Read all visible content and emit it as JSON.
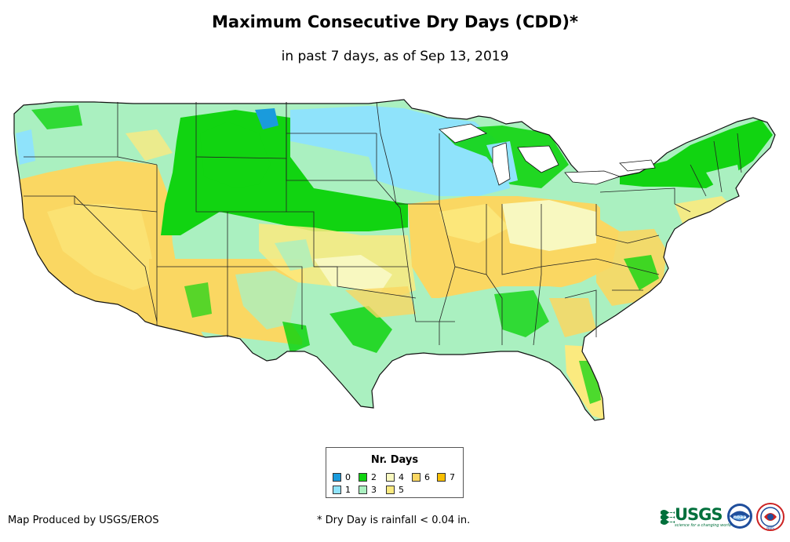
{
  "title": "Maximum Consecutive Dry Days (CDD)*",
  "subtitle": "in past 7 days, as of Sep 13, 2019",
  "legend": {
    "title": "Nr. Days",
    "items": [
      {
        "label": "0",
        "color": "#1a9bdc"
      },
      {
        "label": "1",
        "color": "#8fe3fb"
      },
      {
        "label": "2",
        "color": "#11d411"
      },
      {
        "label": "3",
        "color": "#aaf0c0"
      },
      {
        "label": "4",
        "color": "#f8f8c0"
      },
      {
        "label": "5",
        "color": "#fbea7f"
      },
      {
        "label": "6",
        "color": "#fad762"
      },
      {
        "label": "7",
        "color": "#f8bf00"
      }
    ]
  },
  "footer": {
    "credit": "Map Produced by USGS/EROS",
    "note": "* Dry Day is rainfall < 0.04 in."
  },
  "logos": {
    "usgs_text": "USGS",
    "usgs_tagline": "science for a changing world",
    "noaa_text": "noaa",
    "nws_text": "NWS"
  },
  "map": {
    "region": "Contiguous United States",
    "palette": {
      "d0": "#1a9bdc",
      "d1": "#8fe3fb",
      "d2": "#11d411",
      "d3": "#aaf0c0",
      "d4": "#f8f8c0",
      "d5": "#fbea7f",
      "d6": "#fad762",
      "d7": "#f8bf00"
    }
  }
}
